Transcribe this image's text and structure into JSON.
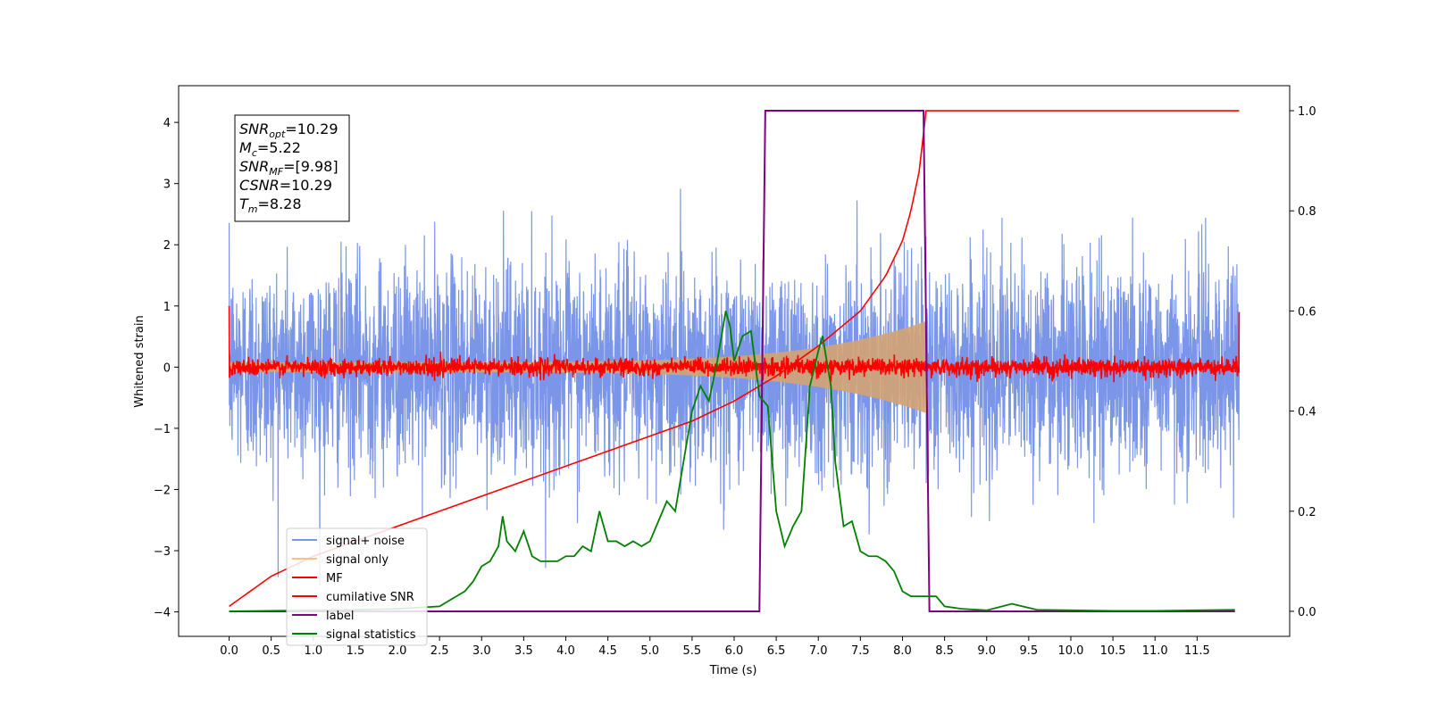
{
  "chart_data": {
    "type": "line",
    "title": "",
    "xlabel": "Time (s)",
    "ylabel": "Whitened strain",
    "xlim": [
      -0.6,
      12.6
    ],
    "ylim": [
      -4.4,
      4.6
    ],
    "y2lim": [
      -0.05,
      1.05
    ],
    "x_ticks": [
      "0.0",
      "0.5",
      "1.0",
      "1.5",
      "2.0",
      "2.5",
      "3.0",
      "3.5",
      "4.0",
      "4.5",
      "5.0",
      "5.5",
      "6.0",
      "6.5",
      "7.0",
      "7.5",
      "8.0",
      "8.5",
      "9.0",
      "9.5",
      "10.0",
      "10.5",
      "11.0",
      "11.5"
    ],
    "y_ticks": [
      "−4",
      "−3",
      "−2",
      "−1",
      "0",
      "1",
      "2",
      "3",
      "4"
    ],
    "y2_ticks": [
      "0.0",
      "0.2",
      "0.4",
      "0.6",
      "0.8",
      "1.0"
    ],
    "grid": false,
    "legend_position": "lower-left",
    "annotation": {
      "lines": [
        {
          "base": "SNR",
          "sub": "opt",
          "rest": "=10.29"
        },
        {
          "base": "M",
          "sub": "c",
          "rest": "=5.22"
        },
        {
          "base": "SNR",
          "sub": "MF",
          "rest": "=[9.98]"
        },
        {
          "base": "CSNR",
          "sub": "",
          "rest": "=10.29"
        },
        {
          "base": "T",
          "sub": "m",
          "rest": "=8.28"
        }
      ]
    },
    "series": [
      {
        "name": "signal+ noise",
        "color": "#7b96e8",
        "axis": "left",
        "kind": "noise",
        "x_range": [
          0.0,
          12.0
        ],
        "approx_std": 0.85,
        "approx_range": [
          -3.9,
          4.2
        ]
      },
      {
        "name": "signal only",
        "color": "#d4a373",
        "axis": "left",
        "kind": "chirp",
        "x_range": [
          0.0,
          8.28
        ],
        "amplitude_start": 0.08,
        "amplitude_end": 0.75
      },
      {
        "name": "MF",
        "color": "#ff0000",
        "axis": "left",
        "kind": "noise",
        "x_range": [
          0.0,
          12.0
        ],
        "approx_std": 0.07
      },
      {
        "name": "cumilative SNR",
        "color": "#ff0000",
        "axis": "right",
        "x": [
          0.0,
          0.5,
          1.0,
          1.5,
          2.0,
          2.5,
          3.0,
          3.5,
          4.0,
          4.5,
          5.0,
          5.5,
          6.0,
          6.5,
          7.0,
          7.5,
          7.8,
          8.0,
          8.1,
          8.2,
          8.28,
          12.0
        ],
        "y": [
          0.01,
          0.07,
          0.11,
          0.14,
          0.17,
          0.2,
          0.23,
          0.26,
          0.29,
          0.32,
          0.35,
          0.38,
          0.42,
          0.47,
          0.53,
          0.6,
          0.67,
          0.74,
          0.8,
          0.88,
          1.0,
          1.0
        ]
      },
      {
        "name": "label",
        "color": "#800080",
        "axis": "right",
        "x": [
          0.0,
          6.3,
          6.37,
          8.25,
          8.32,
          11.95
        ],
        "y": [
          0.0,
          0.0,
          1.0,
          1.0,
          0.0,
          0.0
        ]
      },
      {
        "name": "signal statistics",
        "color": "#008000",
        "axis": "right",
        "x": [
          0.0,
          0.5,
          1.0,
          1.5,
          2.0,
          2.3,
          2.5,
          2.7,
          2.8,
          2.9,
          3.0,
          3.1,
          3.2,
          3.25,
          3.3,
          3.4,
          3.5,
          3.6,
          3.7,
          3.8,
          3.9,
          4.0,
          4.1,
          4.2,
          4.3,
          4.4,
          4.5,
          4.6,
          4.7,
          4.8,
          4.9,
          5.0,
          5.1,
          5.2,
          5.3,
          5.4,
          5.5,
          5.6,
          5.7,
          5.8,
          5.9,
          5.95,
          6.0,
          6.1,
          6.2,
          6.3,
          6.35,
          6.4,
          6.5,
          6.6,
          6.7,
          6.8,
          6.9,
          7.0,
          7.05,
          7.1,
          7.15,
          7.2,
          7.3,
          7.4,
          7.5,
          7.6,
          7.7,
          7.8,
          7.9,
          8.0,
          8.1,
          8.2,
          8.3,
          8.4,
          8.5,
          8.7,
          9.0,
          9.3,
          9.6,
          10.0,
          10.5,
          11.0,
          11.5,
          11.95
        ],
        "y": [
          0.0,
          0.001,
          0.002,
          0.003,
          0.005,
          0.008,
          0.01,
          0.03,
          0.04,
          0.06,
          0.09,
          0.1,
          0.13,
          0.19,
          0.14,
          0.12,
          0.16,
          0.11,
          0.1,
          0.1,
          0.1,
          0.11,
          0.11,
          0.13,
          0.12,
          0.2,
          0.14,
          0.14,
          0.13,
          0.14,
          0.13,
          0.14,
          0.18,
          0.22,
          0.2,
          0.3,
          0.4,
          0.45,
          0.42,
          0.5,
          0.6,
          0.57,
          0.5,
          0.55,
          0.56,
          0.43,
          0.42,
          0.41,
          0.2,
          0.13,
          0.17,
          0.2,
          0.45,
          0.52,
          0.55,
          0.5,
          0.45,
          0.3,
          0.17,
          0.18,
          0.12,
          0.11,
          0.11,
          0.1,
          0.08,
          0.04,
          0.03,
          0.03,
          0.03,
          0.03,
          0.01,
          0.005,
          0.002,
          0.015,
          0.003,
          0.002,
          0.001,
          0.001,
          0.002,
          0.003
        ]
      }
    ]
  }
}
